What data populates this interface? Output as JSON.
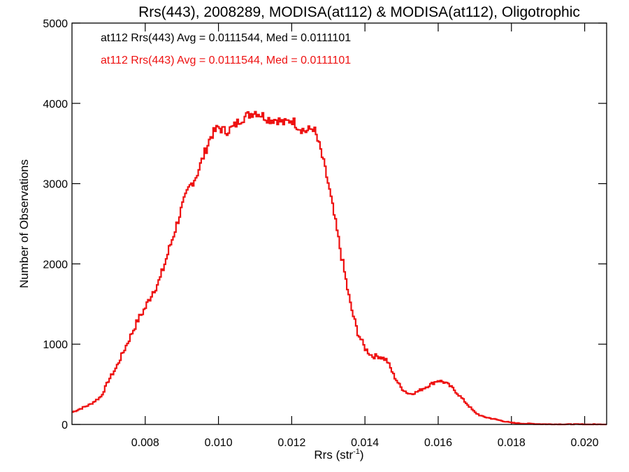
{
  "chart_data": {
    "type": "line",
    "style": "step-histogram",
    "title": "Rrs(443), 2008289, MODISA(at112) & MODISA(at112), Oligotrophic",
    "xlabel_base": "Rrs (str",
    "xlabel_sup": "-1",
    "xlabel_close": ")",
    "ylabel": "Number of Observations",
    "xlim": [
      0.006,
      0.0206
    ],
    "ylim": [
      0,
      5000
    ],
    "x_ticks": [
      0.008,
      0.01,
      0.012,
      0.014,
      0.016,
      0.018,
      0.02
    ],
    "x_tick_labels": [
      "0.008",
      "0.010",
      "0.012",
      "0.014",
      "0.016",
      "0.018",
      "0.020"
    ],
    "y_ticks": [
      0,
      1000,
      2000,
      3000,
      4000,
      5000
    ],
    "y_tick_labels": [
      "0",
      "1000",
      "2000",
      "3000",
      "4000",
      "5000"
    ],
    "annotations": [
      {
        "text": "at112 Rrs(443) Avg = 0.0111544, Med = 0.0111101",
        "color": "#000000"
      },
      {
        "text": "at112 Rrs(443) Avg = 0.0111544, Med = 0.0111101",
        "color": "#ee1111"
      }
    ],
    "series": [
      {
        "color": "#ee1111",
        "x": [
          0.006,
          0.0065,
          0.0068,
          0.007,
          0.0072,
          0.0074,
          0.0076,
          0.0078,
          0.008,
          0.0082,
          0.0084,
          0.0086,
          0.0088,
          0.009,
          0.0092,
          0.0094,
          0.0096,
          0.0098,
          0.01,
          0.0102,
          0.0104,
          0.0106,
          0.0108,
          0.011,
          0.0112,
          0.0114,
          0.0116,
          0.0118,
          0.012,
          0.0122,
          0.0124,
          0.0126,
          0.0128,
          0.013,
          0.0132,
          0.0134,
          0.0136,
          0.0138,
          0.014,
          0.0142,
          0.0144,
          0.0146,
          0.0148,
          0.015,
          0.0152,
          0.0154,
          0.0156,
          0.0158,
          0.016,
          0.0162,
          0.0164,
          0.0166,
          0.0168,
          0.017,
          0.0172,
          0.0174,
          0.0176,
          0.0178,
          0.018,
          0.0182,
          0.0184,
          0.0186,
          0.0188,
          0.019,
          0.0195,
          0.02,
          0.0206
        ],
        "y": [
          150,
          250,
          350,
          550,
          700,
          900,
          1100,
          1300,
          1450,
          1650,
          1800,
          2100,
          2400,
          2700,
          2950,
          3100,
          3350,
          3600,
          3700,
          3650,
          3700,
          3800,
          3850,
          3900,
          3850,
          3800,
          3800,
          3750,
          3800,
          3700,
          3650,
          3700,
          3400,
          3000,
          2500,
          2000,
          1500,
          1150,
          950,
          850,
          850,
          800,
          600,
          450,
          380,
          400,
          450,
          500,
          550,
          520,
          450,
          350,
          250,
          150,
          100,
          80,
          60,
          40,
          20,
          15,
          10,
          8,
          5,
          3,
          2,
          1,
          0
        ]
      }
    ]
  }
}
